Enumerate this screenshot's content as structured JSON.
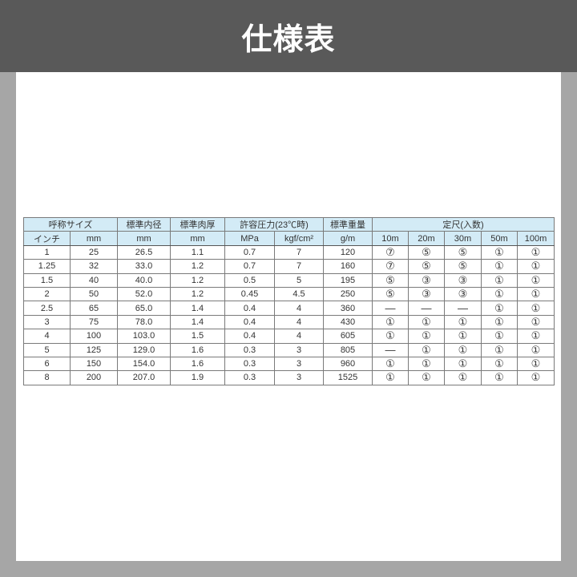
{
  "title": "仕様表",
  "table": {
    "group_headers": [
      "呼称サイズ",
      "標準内径",
      "標準肉厚",
      "許容圧力(23℃時)",
      "標準重量",
      "定尺(入数)"
    ],
    "sub_headers": [
      "インチ",
      "mm",
      "mm",
      "mm",
      "MPa",
      "kgf/cm²",
      "g/m",
      "10m",
      "20m",
      "30m",
      "50m",
      "100m"
    ],
    "rows": [
      [
        "1",
        "25",
        "26.5",
        "1.1",
        "0.7",
        "7",
        "120",
        "⑦",
        "⑤",
        "⑤",
        "①",
        "①"
      ],
      [
        "1.25",
        "32",
        "33.0",
        "1.2",
        "0.7",
        "7",
        "160",
        "⑦",
        "⑤",
        "⑤",
        "①",
        "①"
      ],
      [
        "1.5",
        "40",
        "40.0",
        "1.2",
        "0.5",
        "5",
        "195",
        "⑤",
        "③",
        "③",
        "①",
        "①"
      ],
      [
        "2",
        "50",
        "52.0",
        "1.2",
        "0.45",
        "4.5",
        "250",
        "⑤",
        "③",
        "③",
        "①",
        "①"
      ],
      [
        "2.5",
        "65",
        "65.0",
        "1.4",
        "0.4",
        "4",
        "360",
        "—",
        "—",
        "—",
        "①",
        "①"
      ],
      [
        "3",
        "75",
        "78.0",
        "1.4",
        "0.4",
        "4",
        "430",
        "①",
        "①",
        "①",
        "①",
        "①"
      ],
      [
        "4",
        "100",
        "103.0",
        "1.5",
        "0.4",
        "4",
        "605",
        "①",
        "①",
        "①",
        "①",
        "①"
      ],
      [
        "5",
        "125",
        "129.0",
        "1.6",
        "0.3",
        "3",
        "805",
        "—",
        "①",
        "①",
        "①",
        "①"
      ],
      [
        "6",
        "150",
        "154.0",
        "1.6",
        "0.3",
        "3",
        "960",
        "①",
        "①",
        "①",
        "①",
        "①"
      ],
      [
        "8",
        "200",
        "207.0",
        "1.9",
        "0.3",
        "3",
        "1525",
        "①",
        "①",
        "①",
        "①",
        "①"
      ]
    ]
  }
}
